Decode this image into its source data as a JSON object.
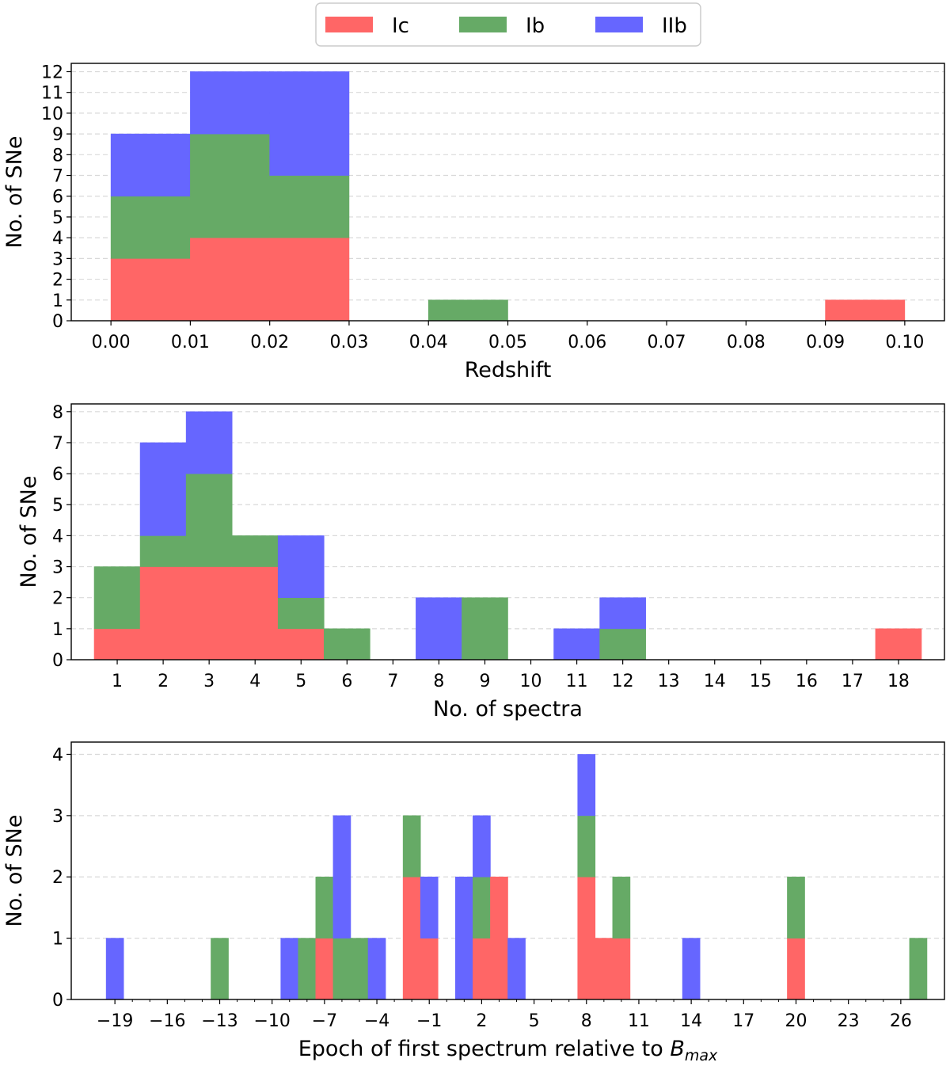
{
  "legend": {
    "entries": [
      {
        "label": "Ic",
        "color": "#ff6666"
      },
      {
        "label": "Ib",
        "color": "#66aa66"
      },
      {
        "label": "IIb",
        "color": "#6666ff"
      }
    ]
  },
  "chart_data": [
    {
      "type": "bar",
      "stacked": true,
      "xlabel": "Redshift",
      "ylabel": "No. of SNe",
      "xlim": [
        -0.005,
        0.105
      ],
      "ylim": [
        0,
        12.4
      ],
      "xticks": [
        "0.00",
        "0.01",
        "0.02",
        "0.03",
        "0.04",
        "0.05",
        "0.06",
        "0.07",
        "0.08",
        "0.09",
        "0.10"
      ],
      "xtick_values": [
        0,
        0.01,
        0.02,
        0.03,
        0.04,
        0.05,
        0.06,
        0.07,
        0.08,
        0.09,
        0.1
      ],
      "yticks": [
        "0",
        "1",
        "2",
        "3",
        "4",
        "5",
        "6",
        "7",
        "8",
        "9",
        "10",
        "11",
        "12"
      ],
      "ytick_values": [
        0,
        1,
        2,
        3,
        4,
        5,
        6,
        7,
        8,
        9,
        10,
        11,
        12
      ],
      "grid": "y-dashed",
      "bins": [
        {
          "range": [
            0.0,
            0.01
          ],
          "Ic": 3,
          "Ib": 3,
          "IIb": 3
        },
        {
          "range": [
            0.01,
            0.02
          ],
          "Ic": 4,
          "Ib": 5,
          "IIb": 3
        },
        {
          "range": [
            0.02,
            0.03
          ],
          "Ic": 4,
          "Ib": 3,
          "IIb": 5
        },
        {
          "range": [
            0.04,
            0.05
          ],
          "Ic": 0,
          "Ib": 1,
          "IIb": 0
        },
        {
          "range": [
            0.09,
            0.1
          ],
          "Ic": 1,
          "Ib": 0,
          "IIb": 0
        }
      ]
    },
    {
      "type": "bar",
      "stacked": true,
      "xlabel": "No. of spectra",
      "ylabel": "No. of SNe",
      "xlim": [
        0,
        19
      ],
      "ylim": [
        0,
        8.25
      ],
      "xticks": [
        "1",
        "2",
        "3",
        "4",
        "5",
        "6",
        "7",
        "8",
        "9",
        "10",
        "11",
        "12",
        "13",
        "14",
        "15",
        "16",
        "17",
        "18"
      ],
      "xtick_values": [
        1,
        2,
        3,
        4,
        5,
        6,
        7,
        8,
        9,
        10,
        11,
        12,
        13,
        14,
        15,
        16,
        17,
        18
      ],
      "yticks": [
        "0",
        "1",
        "2",
        "3",
        "4",
        "5",
        "6",
        "7",
        "8"
      ],
      "ytick_values": [
        0,
        1,
        2,
        3,
        4,
        5,
        6,
        7,
        8
      ],
      "grid": "y-dashed",
      "bins": [
        {
          "range": [
            0.5,
            1.5
          ],
          "Ic": 1,
          "Ib": 2,
          "IIb": 0
        },
        {
          "range": [
            1.5,
            2.5
          ],
          "Ic": 3,
          "Ib": 1,
          "IIb": 3
        },
        {
          "range": [
            2.5,
            3.5
          ],
          "Ic": 3,
          "Ib": 3,
          "IIb": 2
        },
        {
          "range": [
            3.5,
            4.5
          ],
          "Ic": 3,
          "Ib": 1,
          "IIb": 0
        },
        {
          "range": [
            4.5,
            5.5
          ],
          "Ic": 1,
          "Ib": 1,
          "IIb": 2
        },
        {
          "range": [
            5.5,
            6.5
          ],
          "Ic": 0,
          "Ib": 1,
          "IIb": 0
        },
        {
          "range": [
            7.5,
            8.5
          ],
          "Ic": 0,
          "Ib": 0,
          "IIb": 2
        },
        {
          "range": [
            8.5,
            9.5
          ],
          "Ic": 0,
          "Ib": 2,
          "IIb": 0
        },
        {
          "range": [
            10.5,
            11.5
          ],
          "Ic": 0,
          "Ib": 0,
          "IIb": 1
        },
        {
          "range": [
            11.5,
            12.5
          ],
          "Ic": 0,
          "Ib": 1,
          "IIb": 1
        },
        {
          "range": [
            17.5,
            18.5
          ],
          "Ic": 1,
          "Ib": 0,
          "IIb": 0
        }
      ]
    },
    {
      "type": "bar",
      "stacked": true,
      "xlabel": "Epoch of first spectrum relative to ",
      "xlabel_math": "B",
      "xlabel_sub": "max",
      "ylabel": "No. of SNe",
      "xlim": [
        -21.5,
        28.5
      ],
      "ylim": [
        0,
        4.2
      ],
      "xticks": [
        "−19",
        "−16",
        "−13",
        "−10",
        "−7",
        "−4",
        "−1",
        "2",
        "5",
        "8",
        "11",
        "14",
        "17",
        "20",
        "23",
        "26"
      ],
      "xtick_values": [
        -19,
        -16,
        -13,
        -10,
        -7,
        -4,
        -1,
        2,
        5,
        8,
        11,
        14,
        17,
        20,
        23,
        26
      ],
      "yticks": [
        "0",
        "1",
        "2",
        "3",
        "4"
      ],
      "ytick_values": [
        0,
        1,
        2,
        3,
        4
      ],
      "grid": "y-dashed",
      "bins": [
        {
          "range": [
            -19.5,
            -18.5
          ],
          "Ic": 0,
          "Ib": 0,
          "IIb": 1
        },
        {
          "range": [
            -13.5,
            -12.5
          ],
          "Ic": 0,
          "Ib": 1,
          "IIb": 0
        },
        {
          "range": [
            -9.5,
            -8.5
          ],
          "Ic": 0,
          "Ib": 0,
          "IIb": 1
        },
        {
          "range": [
            -8.5,
            -7.5
          ],
          "Ic": 0,
          "Ib": 1,
          "IIb": 0
        },
        {
          "range": [
            -7.5,
            -6.5
          ],
          "Ic": 1,
          "Ib": 1,
          "IIb": 0
        },
        {
          "range": [
            -6.5,
            -5.5
          ],
          "Ic": 0,
          "Ib": 1,
          "IIb": 2
        },
        {
          "range": [
            -5.5,
            -4.5
          ],
          "Ic": 0,
          "Ib": 1,
          "IIb": 0
        },
        {
          "range": [
            -4.5,
            -3.5
          ],
          "Ic": 0,
          "Ib": 0,
          "IIb": 1
        },
        {
          "range": [
            -2.5,
            -1.5
          ],
          "Ic": 2,
          "Ib": 1,
          "IIb": 0
        },
        {
          "range": [
            -1.5,
            -0.5
          ],
          "Ic": 1,
          "Ib": 0,
          "IIb": 1
        },
        {
          "range": [
            0.5,
            1.5
          ],
          "Ic": 0,
          "Ib": 0,
          "IIb": 2
        },
        {
          "range": [
            1.5,
            2.5
          ],
          "Ic": 1,
          "Ib": 1,
          "IIb": 1
        },
        {
          "range": [
            2.5,
            3.5
          ],
          "Ic": 2,
          "Ib": 0,
          "IIb": 0
        },
        {
          "range": [
            3.5,
            4.5
          ],
          "Ic": 0,
          "Ib": 0,
          "IIb": 1
        },
        {
          "range": [
            7.5,
            8.5
          ],
          "Ic": 2,
          "Ib": 1,
          "IIb": 1
        },
        {
          "range": [
            8.5,
            9.5
          ],
          "Ic": 1,
          "Ib": 0,
          "IIb": 0
        },
        {
          "range": [
            9.5,
            10.5
          ],
          "Ic": 1,
          "Ib": 1,
          "IIb": 0
        },
        {
          "range": [
            13.5,
            14.5
          ],
          "Ic": 0,
          "Ib": 0,
          "IIb": 1
        },
        {
          "range": [
            19.5,
            20.5
          ],
          "Ic": 1,
          "Ib": 1,
          "IIb": 0
        },
        {
          "range": [
            26.5,
            27.5
          ],
          "Ic": 0,
          "Ib": 1,
          "IIb": 0
        }
      ]
    }
  ]
}
